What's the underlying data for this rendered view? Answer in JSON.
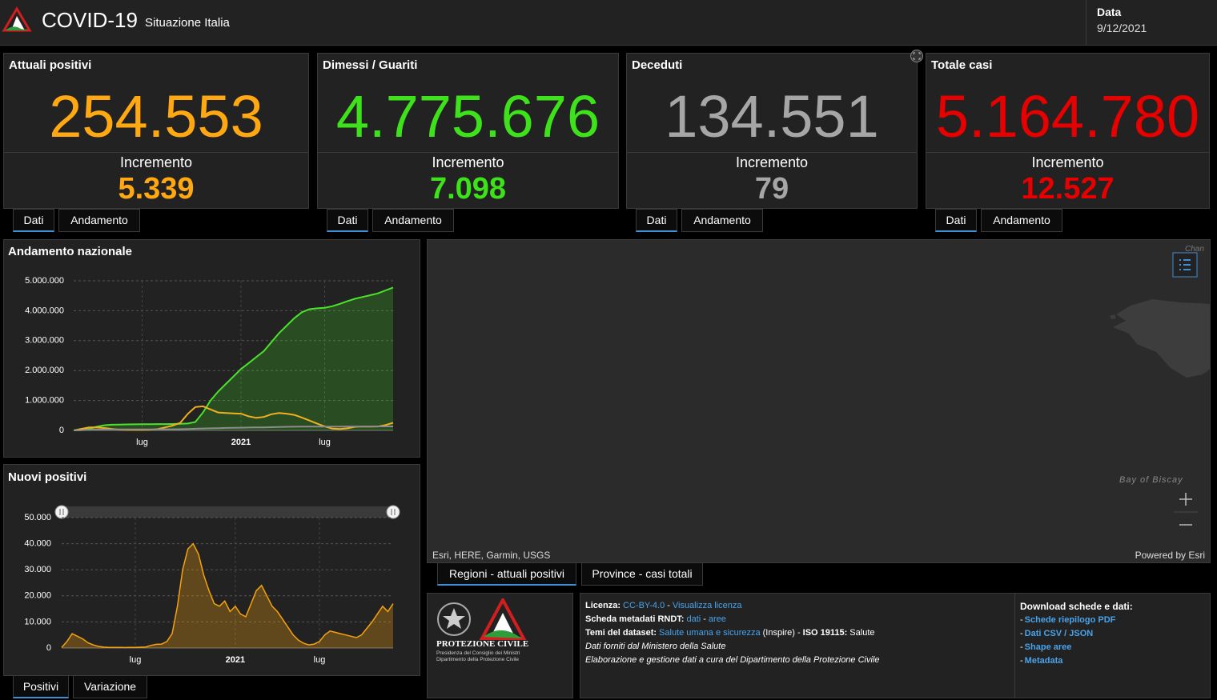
{
  "header": {
    "title": "COVID-19",
    "subtitle": "Situazione Italia",
    "date_label": "Data",
    "date": "9/12/2021"
  },
  "cards": [
    {
      "title": "Attuali positivi",
      "value": "254.553",
      "increment_label": "Incremento",
      "increment": "5.339",
      "color": "#ffa812",
      "tabs": [
        "Dati",
        "Andamento"
      ]
    },
    {
      "title": "Dimessi / Guariti",
      "value": "4.775.676",
      "increment_label": "Incremento",
      "increment": "7.098",
      "color": "#3ee21a",
      "tabs": [
        "Dati",
        "Andamento"
      ]
    },
    {
      "title": "Deceduti",
      "value": "134.551",
      "increment_label": "Incremento",
      "increment": "79",
      "color": "#a6a6a6",
      "tabs": [
        "Dati",
        "Andamento"
      ]
    },
    {
      "title": "Totale casi",
      "value": "5.164.780",
      "increment_label": "Incremento",
      "increment": "12.527",
      "color": "#e60000",
      "tabs": [
        "Dati",
        "Andamento"
      ]
    }
  ],
  "chart_data": [
    {
      "type": "line",
      "title": "Andamento nazionale",
      "grid": true,
      "categories": [
        null,
        null,
        null,
        null,
        null,
        null,
        null,
        null,
        null,
        "lug",
        null,
        null,
        null,
        null,
        null,
        null,
        null,
        null,
        null,
        null,
        null,
        null,
        "2021",
        null,
        null,
        null,
        null,
        null,
        null,
        null,
        null,
        null,
        null,
        "lug",
        null,
        null,
        null,
        null,
        null,
        null,
        null,
        null,
        null
      ],
      "ylim": [
        0,
        5000000
      ],
      "yticks": [
        0,
        {
          "value": 1000000,
          "label": "1.000.000"
        },
        {
          "value": 2000000,
          "label": "2.000.000"
        },
        {
          "value": 3000000,
          "label": "3.000.000"
        },
        {
          "value": 4000000,
          "label": "4.000.000"
        },
        {
          "value": 5000000,
          "label": "5.000.000"
        }
      ],
      "series": [
        {
          "color": "#4be32a",
          "fill": true,
          "values": [
            0,
            10000,
            50000,
            120000,
            170000,
            190000,
            195000,
            200000,
            203000,
            205000,
            207000,
            210000,
            212000,
            215000,
            220000,
            230000,
            280000,
            600000,
            1000000,
            1300000,
            1550000,
            1800000,
            2050000,
            2250000,
            2450000,
            2650000,
            2950000,
            3250000,
            3500000,
            3750000,
            3950000,
            4050000,
            4080000,
            4100000,
            4150000,
            4230000,
            4320000,
            4400000,
            4460000,
            4520000,
            4580000,
            4680000,
            4775676
          ]
        },
        {
          "color": "#f2b01e",
          "fill": false,
          "values": [
            0,
            50000,
            100000,
            105000,
            80000,
            50000,
            25000,
            15000,
            13000,
            14000,
            20000,
            40000,
            100000,
            160000,
            250000,
            550000,
            780000,
            805000,
            700000,
            600000,
            580000,
            570000,
            560000,
            470000,
            420000,
            450000,
            540000,
            580000,
            560000,
            520000,
            430000,
            330000,
            230000,
            130000,
            60000,
            45000,
            70000,
            120000,
            130000,
            125000,
            130000,
            180000,
            254553
          ]
        },
        {
          "color": "#8c8c8c",
          "fill": false,
          "values": [
            0,
            5000,
            20000,
            30000,
            33000,
            34500,
            35000,
            35100,
            35200,
            35300,
            35500,
            35800,
            36500,
            38000,
            41000,
            47000,
            55000,
            63000,
            70000,
            76000,
            82000,
            88000,
            92000,
            96000,
            99000,
            102000,
            107000,
            113000,
            119000,
            124000,
            127000,
            128000,
            128500,
            128800,
            129000,
            129300,
            129700,
            130200,
            130900,
            131700,
            132600,
            133600,
            134551
          ]
        }
      ]
    },
    {
      "type": "area",
      "title": "Nuovi positivi",
      "grid": true,
      "color": "#f5a20f",
      "categories": [
        null,
        null,
        null,
        null,
        null,
        null,
        null,
        null,
        null,
        null,
        null,
        null,
        null,
        null,
        "lug",
        null,
        null,
        null,
        null,
        null,
        null,
        null,
        null,
        null,
        null,
        null,
        null,
        null,
        null,
        null,
        null,
        null,
        null,
        "2021",
        null,
        null,
        null,
        null,
        null,
        null,
        null,
        null,
        null,
        null,
        null,
        null,
        null,
        null,
        null,
        "lug",
        null,
        null,
        null,
        null,
        null,
        null,
        null,
        null,
        null,
        null,
        null,
        null,
        null,
        null
      ],
      "ylim": [
        0,
        50000
      ],
      "yticks": [
        0,
        {
          "value": 10000,
          "label": "10.000"
        },
        {
          "value": 20000,
          "label": "20.000"
        },
        {
          "value": 30000,
          "label": "30.000"
        },
        {
          "value": 40000,
          "label": "40.000"
        },
        {
          "value": 50000,
          "label": "50.000"
        }
      ],
      "values": [
        200,
        2500,
        5500,
        4500,
        3500,
        2000,
        1200,
        600,
        350,
        250,
        200,
        200,
        180,
        200,
        250,
        300,
        400,
        1000,
        1400,
        1500,
        2500,
        5500,
        16000,
        30000,
        38000,
        40000,
        36000,
        28000,
        22000,
        17000,
        16000,
        18000,
        14000,
        16000,
        13000,
        12000,
        17000,
        22000,
        24000,
        20000,
        16000,
        14000,
        11000,
        8000,
        5000,
        3000,
        1800,
        1200,
        1500,
        2500,
        5000,
        6500,
        6000,
        5500,
        5000,
        4500,
        4000,
        5000,
        7500,
        10000,
        13000,
        16000,
        14000,
        17000
      ]
    }
  ],
  "chart_tabs": [
    "Positivi",
    "Variazione"
  ],
  "map": {
    "attribution": "Esri, HERE, Garmin, USGS",
    "powered_by": "Powered by Esri",
    "sea_label": "Bay of Biscay",
    "channel_label": "Chan",
    "tabs": [
      "Regioni - attuali positivi",
      "Province - casi totali"
    ]
  },
  "footer": {
    "logo": {
      "name": "PROTEZIONE CIVILE",
      "lines": [
        "Presidenza del Consiglio dei Ministri",
        "Dipartimento della Protezione Civile"
      ]
    },
    "license": [
      "Licenza:",
      "CC-BY-4.0",
      "-",
      "Visualizza licenza"
    ],
    "metadata": [
      "Scheda metadati RNDT:",
      "dati",
      "-",
      "aree"
    ],
    "themes": [
      "Temi del dataset:",
      "Salute umana e sicurezza",
      "(Inspire)",
      "-",
      "ISO 19115:",
      "Salute"
    ],
    "source": "Dati forniti dal Ministero della Salute",
    "processing": "Elaborazione e gestione dati a cura del Dipartimento della Protezione Civile",
    "downloads": {
      "title": "Download schede e dati:",
      "items": [
        {
          "bullet": "-",
          "label": "Schede riepilogo PDF"
        },
        {
          "bullet": "-",
          "label": "Dati CSV / JSON"
        },
        {
          "bullet": "-",
          "label": "Shape aree"
        },
        {
          "bullet": "-",
          "label": "Metadata"
        }
      ]
    }
  }
}
